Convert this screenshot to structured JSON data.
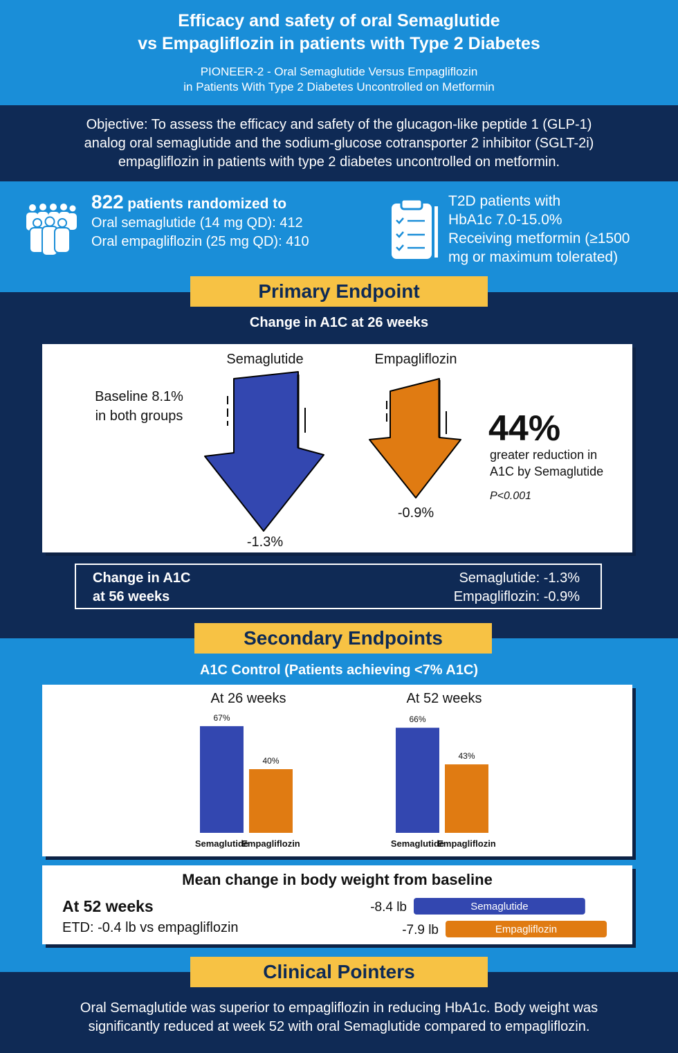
{
  "colors": {
    "light_blue": "#1a8ed8",
    "navy": "#0f2a55",
    "yellow": "#f7c244",
    "semaglutide": "#3347b0",
    "empagliflozin": "#e07b12"
  },
  "header": {
    "title_line1": "Efficacy and safety of oral Semaglutide",
    "title_line2": "vs Empagliflozin in patients with Type 2 Diabetes",
    "subtitle_line1": "PIONEER-2 - Oral Semaglutide Versus Empagliflozin",
    "subtitle_line2": "in Patients With Type 2 Diabetes Uncontrolled on Metformin"
  },
  "objective": {
    "line1": "Objective: To assess the efficacy and safety of the glucagon-like peptide 1 (GLP-1)",
    "line2": "analog oral semaglutide and the sodium-glucose cotransporter 2 inhibitor (SGLT-2i)",
    "line3": "empagliflozin in patients with type 2 diabetes uncontrolled on metformin."
  },
  "patients": {
    "count": "822",
    "count_label": "patients randomized to",
    "line2": "Oral semaglutide (14 mg QD): 412",
    "line3": "Oral empagliflozin (25 mg QD): 410",
    "icon": "people-group-icon"
  },
  "criteria": {
    "icon": "clipboard-checklist-icon",
    "line1": "T2D patients with",
    "line2": "HbA1c 7.0-15.0%",
    "line3": "Receiving metformin (≥1500",
    "line4": "mg or maximum tolerated)"
  },
  "primary": {
    "heading": "Primary Endpoint",
    "subheading": "Change in A1C at 26 weeks",
    "baseline_line1": "Baseline 8.1%",
    "baseline_line2": "in both groups",
    "sema_label": "Semaglutide",
    "sema_value": "-1.3%",
    "empa_label": "Empagliflozin",
    "empa_value": "-0.9%",
    "big_pct": "44%",
    "reduction_line1": "greater reduction in",
    "reduction_line2": "A1C by Semaglutide",
    "p_value": "P<0.001",
    "box_left_line1": "Change in A1C",
    "box_left_line2": "at 56 weeks",
    "box_right_line1": "Semaglutide: -1.3%",
    "box_right_line2": "Empagliflozin: -0.9%"
  },
  "secondary": {
    "heading": "Secondary Endpoints",
    "subheading": "A1C Control (Patients achieving <7% A1C)"
  },
  "chart_data": [
    {
      "type": "bar",
      "title": "At 26 weeks",
      "categories": [
        "Semaglutide",
        "Empagliflozin"
      ],
      "values": [
        67,
        40
      ],
      "value_labels": [
        "67%",
        "40%"
      ]
    },
    {
      "type": "bar",
      "title": "At 52 weeks",
      "categories": [
        "Semaglutide",
        "Empagliflozin"
      ],
      "values": [
        66,
        43
      ],
      "value_labels": [
        "66%",
        "43%"
      ]
    },
    {
      "type": "bar",
      "title": "Mean change in body weight from baseline",
      "categories": [
        "Semaglutide",
        "Empagliflozin"
      ],
      "values": [
        -8.4,
        -7.9
      ],
      "value_labels": [
        "-8.4 lb",
        "-7.9 lb"
      ]
    }
  ],
  "weight": {
    "title": "Mean change in body weight from baseline",
    "left_heading": "At 52 weeks",
    "left_sub": "ETD: -0.4 lb vs empagliflozin"
  },
  "pointers": {
    "heading": "Clinical Pointers",
    "line1": "Oral Semaglutide was superior to empagliflozin in reducing HbA1c. Body weight was",
    "line2": "significantly reduced at week 52 with oral Semaglutide compared to empagliflozin."
  }
}
